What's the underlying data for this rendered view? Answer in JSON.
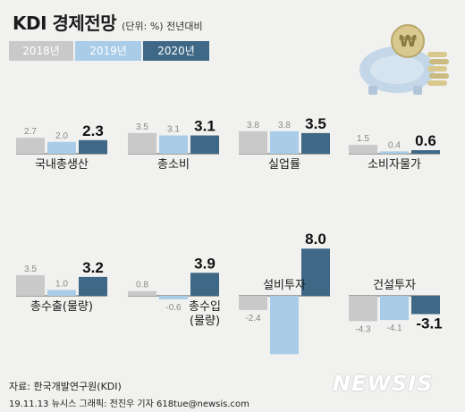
{
  "header": {
    "title": "KDI 경제전망",
    "subtitle": "(단위: %) 전년대비"
  },
  "legend": [
    "2018년",
    "2019년",
    "2020년"
  ],
  "colors": {
    "y2018": "#c9c9c9",
    "y2019": "#a9cde8",
    "y2020": "#3f6887",
    "background": "#f1f1ef",
    "axis": "#555555"
  },
  "chart_data": {
    "type": "bar",
    "series": [
      {
        "name": "2018년"
      },
      {
        "name": "2019년"
      },
      {
        "name": "2020년"
      }
    ],
    "panels": [
      {
        "category": "국내총생산",
        "values": [
          "2.7",
          "2.0",
          "2.3"
        ]
      },
      {
        "category": "총소비",
        "values": [
          "3.5",
          "3.1",
          "3.1"
        ]
      },
      {
        "category": "실업률",
        "values": [
          "3.8",
          "3.8",
          "3.5"
        ]
      },
      {
        "category": "소비자물가",
        "values": [
          "1.5",
          "0.4",
          "0.6"
        ]
      },
      {
        "category": "총수출(물량)",
        "values": [
          "3.5",
          "1.0",
          "3.2"
        ]
      },
      {
        "category": "총수입\n(물량)",
        "values": [
          "0.8",
          "-0.6",
          "3.9"
        ]
      },
      {
        "category": "설비투자",
        "values": [
          "-2.4",
          "-9.9",
          "8.0"
        ]
      },
      {
        "category": "건설투자",
        "values": [
          "-4.3",
          "-4.1",
          "-3.1"
        ]
      }
    ]
  },
  "footer": {
    "source": "자료: 한국개발연구원(KDI)",
    "credit": "19.11.13 뉴시스 그래픽: 전진우 기자 618tue@newsis.com",
    "logo": "NEWSIS"
  }
}
